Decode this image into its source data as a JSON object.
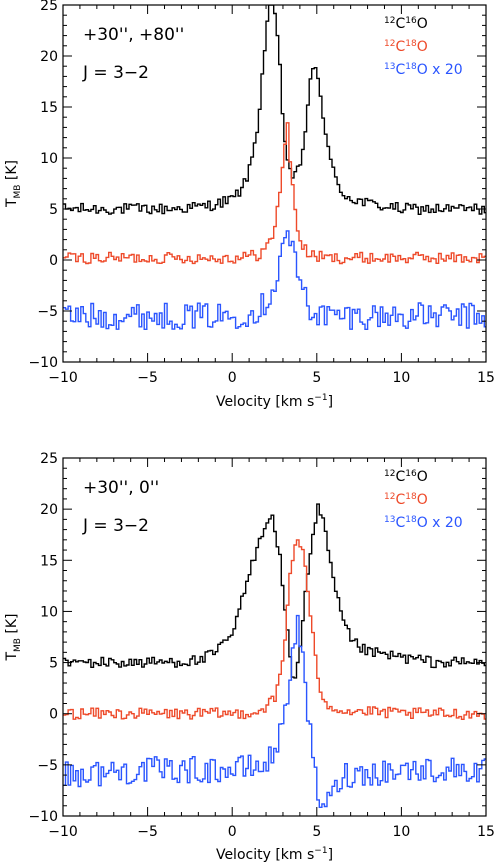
{
  "chart_data": [
    {
      "type": "line",
      "annotations": [
        "+30'', +80''",
        "J = 3−2"
      ],
      "xlabel_main": "Velocity [km s",
      "xlabel_sup": "−1",
      "xlabel_end": "]",
      "ylabel_main": "T",
      "ylabel_sub": "MB",
      "ylabel_end": " [K]",
      "xlim": [
        -10,
        15
      ],
      "ylim": [
        -10,
        25
      ],
      "xticks": [
        -10,
        -5,
        0,
        5,
        10,
        15
      ],
      "yticks": [
        -10,
        -5,
        0,
        5,
        10,
        15,
        20,
        25
      ],
      "xtick_labels": [
        "−10",
        "−5",
        "0",
        "5",
        "10",
        "15"
      ],
      "ytick_labels": [
        "−10",
        "−5",
        "0",
        "5",
        "10",
        "15",
        "20",
        "25"
      ],
      "legend_position": "top-right",
      "series": [
        {
          "name": "12C16O",
          "legend_parts": [
            "12",
            "C",
            "16",
            "O"
          ],
          "color": "#000000",
          "x": [
            -10,
            -7,
            -4,
            -2,
            -1,
            0,
            0.5,
            1.0,
            1.5,
            1.8,
            2.1,
            2.4,
            2.7,
            3.0,
            3.3,
            3.6,
            3.9,
            4.2,
            4.5,
            4.8,
            5.1,
            5.4,
            5.7,
            6.0,
            6.5,
            7.0,
            8.0,
            10,
            12,
            15
          ],
          "values": [
            5,
            5,
            5,
            5.2,
            5.5,
            6.0,
            7,
            9,
            14,
            20,
            25,
            25,
            20,
            12,
            9,
            8,
            9,
            12,
            17,
            19,
            17,
            13,
            10,
            8,
            6.5,
            6,
            5.5,
            5,
            5,
            5
          ]
        },
        {
          "name": "12C18O",
          "legend_parts": [
            "12",
            "C",
            "18",
            "O"
          ],
          "color": "#ee4a2a",
          "x": [
            -10,
            -5,
            0,
            1.5,
            2.3,
            2.7,
            3.0,
            3.2,
            3.4,
            3.7,
            4.0,
            4.5,
            5.5,
            10,
            15
          ],
          "values": [
            0.2,
            0.2,
            0.2,
            0.5,
            2,
            6,
            11,
            13,
            9,
            4,
            1.5,
            0.5,
            0.2,
            0.2,
            0.2
          ]
        },
        {
          "name": "13C18O x 20",
          "legend_parts": [
            "13",
            "C",
            "18",
            "O x 20"
          ],
          "color": "#2a55ff",
          "x": [
            -10,
            -5,
            0,
            1.5,
            2.3,
            2.8,
            3.1,
            3.3,
            3.6,
            4.0,
            4.6,
            5.5,
            10,
            15
          ],
          "values": [
            -5.5,
            -5.5,
            -5.5,
            -5,
            -3,
            0,
            3,
            2.5,
            0,
            -2.5,
            -5,
            -5.5,
            -5.5,
            -5.5
          ]
        }
      ]
    },
    {
      "type": "line",
      "annotations": [
        "+30'',  0''",
        "J = 3−2"
      ],
      "xlabel_main": "Velocity [km s",
      "xlabel_sup": "−1",
      "xlabel_end": "]",
      "ylabel_main": "T",
      "ylabel_sub": "MB",
      "ylabel_end": " [K]",
      "xlim": [
        -10,
        15
      ],
      "ylim": [
        -10,
        25
      ],
      "xticks": [
        -10,
        -5,
        0,
        5,
        10,
        15
      ],
      "yticks": [
        -10,
        -5,
        0,
        5,
        10,
        15,
        20,
        25
      ],
      "xtick_labels": [
        "−10",
        "−5",
        "0",
        "5",
        "10",
        "15"
      ],
      "ytick_labels": [
        "−10",
        "−5",
        "0",
        "5",
        "10",
        "15",
        "20",
        "25"
      ],
      "legend_position": "top-right",
      "series": [
        {
          "name": "12C16O",
          "legend_parts": [
            "12",
            "C",
            "16",
            "O"
          ],
          "color": "#000000",
          "x": [
            -10,
            -5,
            -2,
            -1,
            0,
            0.5,
            1.0,
            1.5,
            2.0,
            2.3,
            2.7,
            3.0,
            3.3,
            3.6,
            3.9,
            4.2,
            4.6,
            5.0,
            5.3,
            5.6,
            6.0,
            6.5,
            7.0,
            8.0,
            10,
            12,
            15
          ],
          "values": [
            5,
            5,
            5.2,
            6,
            8,
            11,
            14,
            17,
            19,
            19,
            16,
            11,
            6,
            3,
            6,
            11,
            16,
            20,
            19,
            16,
            12,
            9,
            7,
            6,
            5.5,
            5,
            5
          ]
        },
        {
          "name": "12C18O",
          "legend_parts": [
            "12",
            "C",
            "18",
            "O"
          ],
          "color": "#ee4a2a",
          "x": [
            -10,
            -5,
            0,
            1.5,
            2.5,
            3.0,
            3.3,
            3.6,
            3.9,
            4.2,
            4.6,
            5.0,
            5.5,
            6.5,
            10,
            15
          ],
          "values": [
            0,
            0,
            0,
            0.2,
            1.5,
            6,
            13,
            16.5,
            17,
            15,
            9,
            3,
            1,
            0.3,
            0,
            0
          ]
        },
        {
          "name": "13C18O x 20",
          "legend_parts": [
            "13",
            "C",
            "18",
            "O x 20"
          ],
          "color": "#2a55ff",
          "x": [
            -10,
            -5,
            0,
            2.0,
            2.8,
            3.3,
            3.6,
            3.9,
            4.2,
            4.6,
            5.0,
            5.5,
            6.5,
            10,
            15
          ],
          "values": [
            -6,
            -5.5,
            -5.5,
            -5,
            -2,
            3,
            8,
            8.5,
            3,
            -3,
            -8,
            -9,
            -6,
            -5.5,
            -5.5
          ]
        }
      ]
    }
  ]
}
